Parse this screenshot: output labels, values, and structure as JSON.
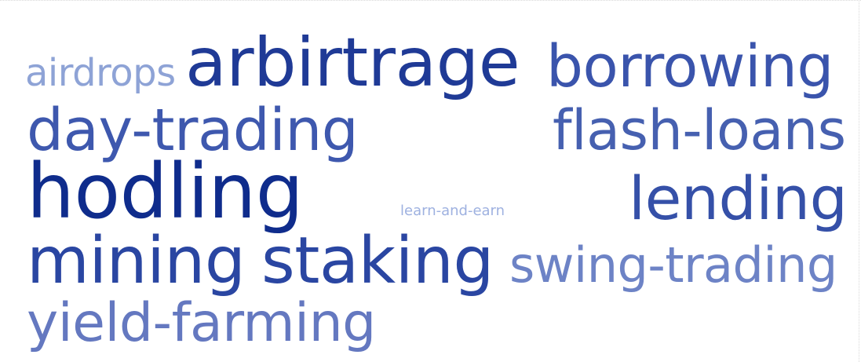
{
  "cloud": {
    "words": [
      {
        "text": "airdrops",
        "color": "#8ea3d6"
      },
      {
        "text": "arbirtrage",
        "color": "#1f3a96"
      },
      {
        "text": "borrowing",
        "color": "#3a54ac"
      },
      {
        "text": "day-trading",
        "color": "#3e58ae"
      },
      {
        "text": "flash-loans",
        "color": "#4660b0"
      },
      {
        "text": "hodling",
        "color": "#0f2c8c"
      },
      {
        "text": "lending",
        "color": "#3550a8"
      },
      {
        "text": "learn-and-earn",
        "color": "#9eb1e0"
      },
      {
        "text": "mining",
        "color": "#2a46a2"
      },
      {
        "text": "staking",
        "color": "#2a46a2"
      },
      {
        "text": "swing-trading",
        "color": "#6d83c6"
      },
      {
        "text": "yield-farming",
        "color": "#6478c0"
      }
    ]
  }
}
